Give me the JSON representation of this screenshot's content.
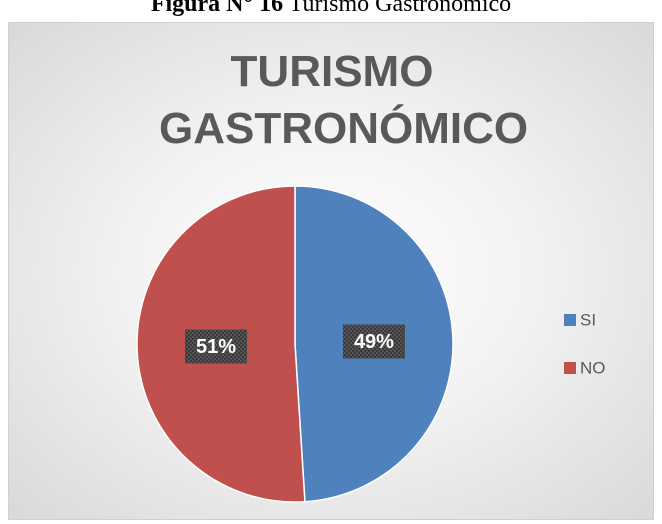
{
  "figure_label": "Figura N° 16",
  "figure_title": "Turismo Gastronómico",
  "chart_data": {
    "type": "pie",
    "title": "TURISMO GASTRONÓMICO",
    "categories": [
      "SI",
      "NO"
    ],
    "values": [
      49,
      51
    ],
    "value_labels": [
      "49%",
      "51%"
    ],
    "colors": [
      "#4f81bd",
      "#c0504d"
    ],
    "legend": "right"
  }
}
